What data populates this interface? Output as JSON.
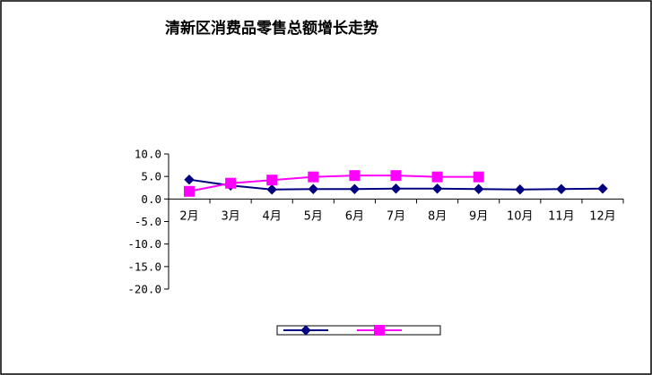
{
  "chart_data": {
    "type": "line",
    "title": "清新区消费品零售总额增长走势",
    "xlabel": "",
    "ylabel": "",
    "categories": [
      "2月",
      "3月",
      "4月",
      "5月",
      "6月",
      "7月",
      "8月",
      "9月",
      "10月",
      "11月",
      "12月"
    ],
    "y_ticks": [
      "10.0",
      "5.0",
      "0.0",
      "-5.0",
      "-10.0",
      "-15.0",
      "-20.0"
    ],
    "ylim": [
      -20,
      10
    ],
    "grid": false,
    "legend_position": "bottom",
    "series": [
      {
        "name": "",
        "color": "#000080",
        "marker": "diamond",
        "values": [
          4.3,
          3.0,
          2.1,
          2.2,
          2.2,
          2.3,
          2.3,
          2.2,
          2.1,
          2.2,
          2.3
        ]
      },
      {
        "name": "",
        "color": "#ff00ff",
        "marker": "square",
        "values": [
          1.7,
          3.5,
          4.2,
          4.9,
          5.2,
          5.2,
          4.9,
          4.9,
          null,
          null,
          null
        ]
      }
    ]
  }
}
